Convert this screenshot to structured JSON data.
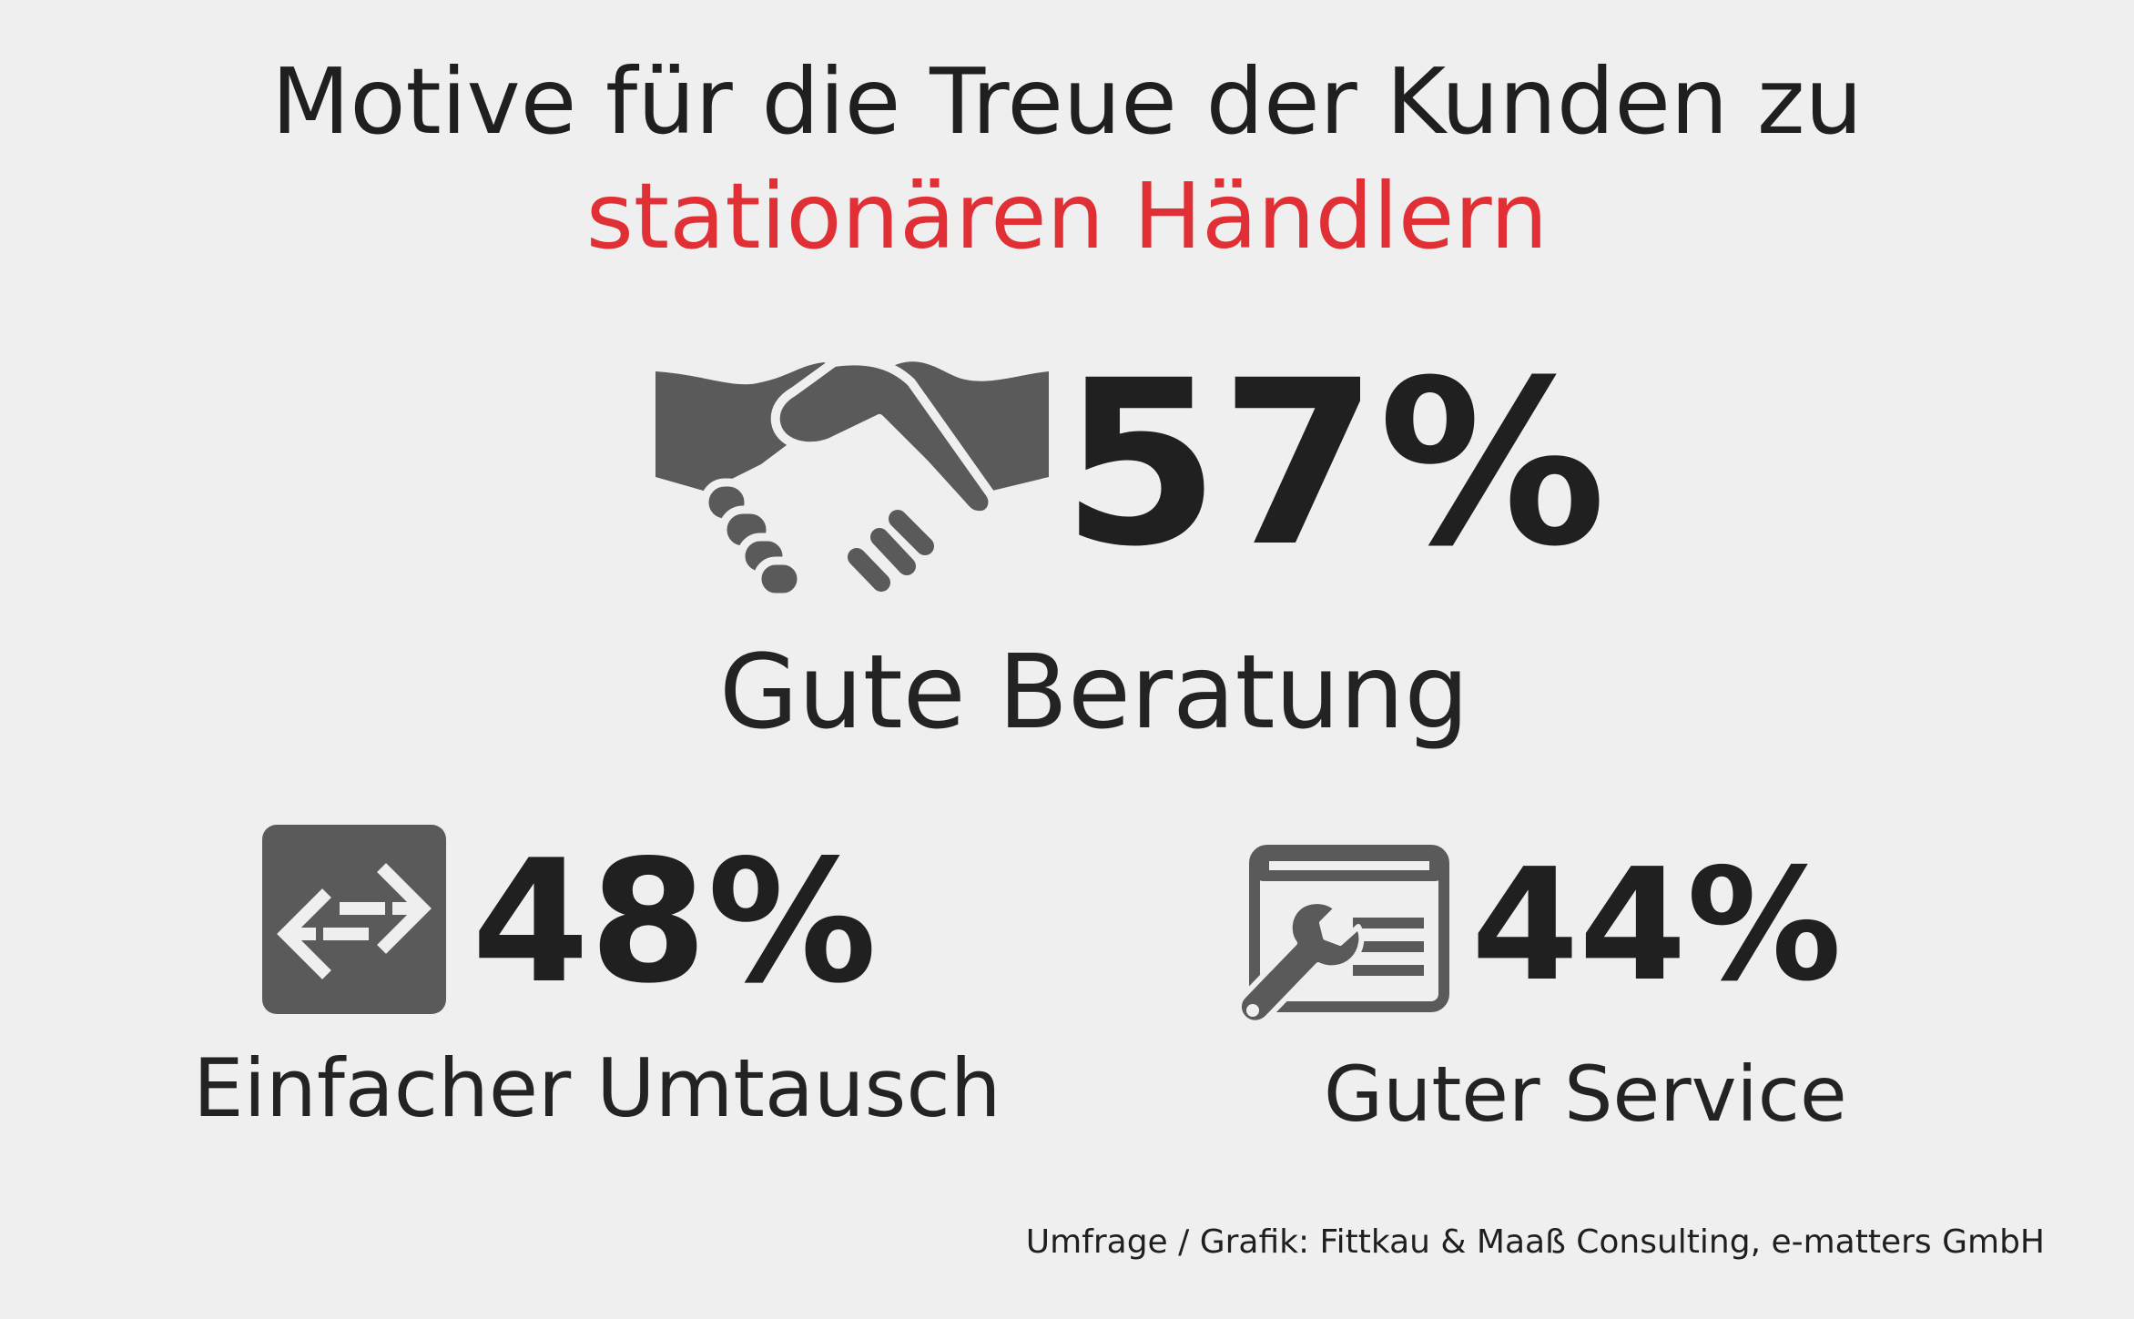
{
  "chart_data": {
    "type": "table",
    "title": "Motive für die Treue der Kunden zu",
    "title_highlight": "stationären Händlern",
    "categories": [
      "Gute Beratung",
      "Einfacher Umtausch",
      "Guter Service"
    ],
    "values": [
      57,
      48,
      44
    ],
    "value_labels": [
      "57%",
      "48%",
      "44%"
    ],
    "icons": [
      "handshake-icon",
      "exchange-arrows-icon",
      "wrench-window-icon"
    ],
    "source": "Umfrage / Grafik: Fittkau & Maaß Consulting, e-matters GmbH"
  },
  "colors": {
    "background": "#efefef",
    "text": "#1f1f1f",
    "highlight": "#e03035",
    "icon": "#5a5a5a"
  }
}
